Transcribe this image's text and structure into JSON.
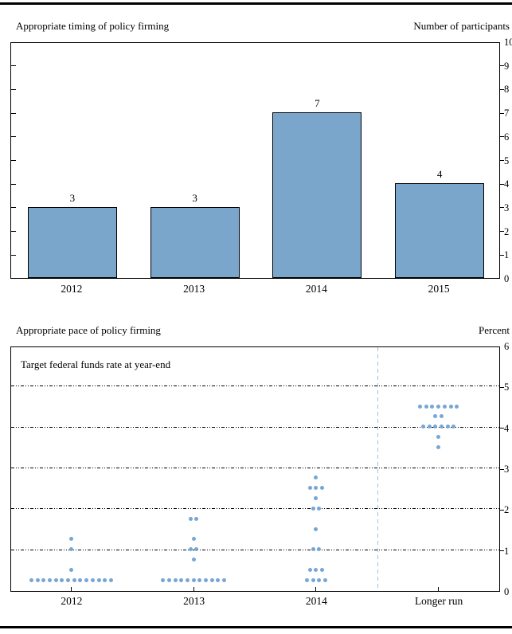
{
  "page": {
    "top_chart": {
      "title": "Appropriate timing of policy firming",
      "axis_label_right": "Number of participants"
    },
    "bottom_chart": {
      "title": "Appropriate pace of policy firming",
      "axis_label_right": "Percent",
      "annotation": "Target federal funds rate at year-end"
    }
  },
  "chart_data": [
    {
      "type": "bar",
      "title": "Appropriate timing of policy firming",
      "ylabel_right": "Number of participants",
      "categories": [
        "2012",
        "2013",
        "2014",
        "2015"
      ],
      "values": [
        3,
        3,
        7,
        4
      ],
      "bar_value_labels": [
        "3",
        "3",
        "7",
        "4"
      ],
      "ylim": [
        0,
        10
      ],
      "y_ticks": [
        0,
        1,
        2,
        3,
        4,
        5,
        6,
        7,
        8,
        9,
        10
      ],
      "grid": false,
      "legend_position": "none",
      "bar_color": "#7ba6cb",
      "bar_border_color": "#000000"
    },
    {
      "type": "scatter",
      "title": "Appropriate pace of policy firming",
      "ylabel_right": "Percent",
      "annotation": "Target federal funds rate at year-end",
      "categories": [
        "2012",
        "2013",
        "2014",
        "Longer run"
      ],
      "ylim": [
        0,
        6
      ],
      "y_ticks": [
        0,
        1,
        2,
        3,
        4,
        5,
        6
      ],
      "gridline_values": [
        1,
        2,
        3,
        4,
        5
      ],
      "grid": true,
      "legend_position": "none",
      "separator_after_category_index": 2,
      "dot_color": "#76a7d4",
      "separator_color": "#9cc0dc",
      "series": [
        {
          "category": "2012",
          "points": [
            {
              "value": 0.25,
              "count": 14
            },
            {
              "value": 0.5,
              "count": 1
            },
            {
              "value": 1.0,
              "count": 1
            },
            {
              "value": 1.25,
              "count": 1
            }
          ]
        },
        {
          "category": "2013",
          "points": [
            {
              "value": 0.25,
              "count": 11
            },
            {
              "value": 0.75,
              "count": 1
            },
            {
              "value": 1.0,
              "count": 2
            },
            {
              "value": 1.25,
              "count": 1
            },
            {
              "value": 1.75,
              "count": 2
            }
          ]
        },
        {
          "category": "2014",
          "points": [
            {
              "value": 0.25,
              "count": 4
            },
            {
              "value": 0.5,
              "count": 3
            },
            {
              "value": 1.0,
              "count": 2
            },
            {
              "value": 1.5,
              "count": 1
            },
            {
              "value": 2.0,
              "count": 2
            },
            {
              "value": 2.25,
              "count": 1
            },
            {
              "value": 2.5,
              "count": 3
            },
            {
              "value": 2.75,
              "count": 1
            }
          ]
        },
        {
          "category": "Longer run",
          "points": [
            {
              "value": 3.5,
              "count": 1
            },
            {
              "value": 3.75,
              "count": 1
            },
            {
              "value": 4.0,
              "count": 6
            },
            {
              "value": 4.25,
              "count": 2
            },
            {
              "value": 4.5,
              "count": 7
            }
          ]
        }
      ]
    }
  ]
}
